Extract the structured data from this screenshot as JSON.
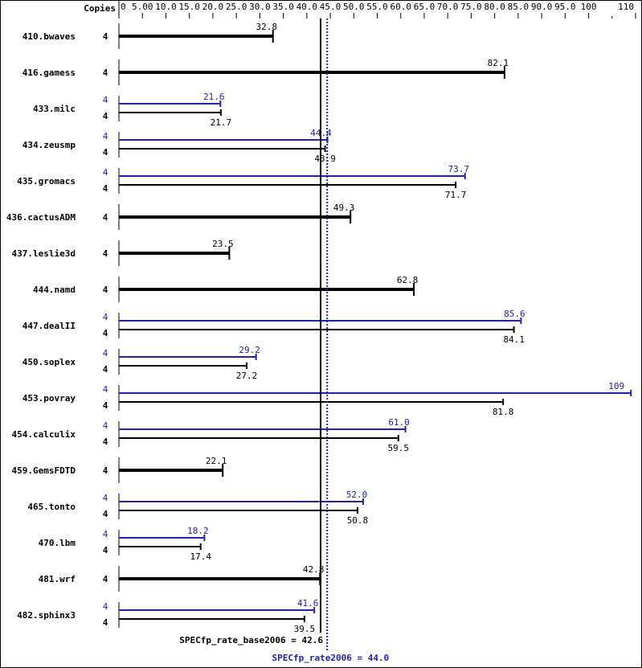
{
  "chart_data": {
    "type": "bar",
    "orientation": "horizontal",
    "copies_header": "Copies",
    "xlim": [
      0,
      110
    ],
    "x_ticks": [
      "0",
      "5.00",
      "10.0",
      "15.0",
      "20.0",
      "25.0",
      "30.0",
      "35.0",
      "40.0",
      "45.0",
      "50.0",
      "55.0",
      "60.0",
      "65.0",
      "70.0",
      "75.0",
      "80.0",
      "85.0",
      "90.0",
      "95.0",
      "100",
      "110"
    ],
    "x_tick_values": [
      0,
      5,
      10,
      15,
      20,
      25,
      30,
      35,
      40,
      45,
      50,
      55,
      60,
      65,
      70,
      75,
      80,
      85,
      90,
      95,
      100,
      110
    ],
    "colors": {
      "base": "#000000",
      "peak": "#2222aa"
    },
    "benchmarks": [
      {
        "name": "410.bwaves",
        "copies": "4",
        "base": 32.8,
        "base_label": "32.8"
      },
      {
        "name": "416.gamess",
        "copies": "4",
        "base": 82.1,
        "base_label": "82.1"
      },
      {
        "name": "433.milc",
        "copies": "4",
        "peak_copies": "4",
        "peak": 21.6,
        "peak_label": "21.6",
        "base": 21.7,
        "base_label": "21.7"
      },
      {
        "name": "434.zeusmp",
        "copies": "4",
        "peak_copies": "4",
        "peak": 44.4,
        "peak_label": "44.4",
        "base": 43.9,
        "base_label": "43.9"
      },
      {
        "name": "435.gromacs",
        "copies": "4",
        "peak_copies": "4",
        "peak": 73.7,
        "peak_label": "73.7",
        "base": 71.7,
        "base_label": "71.7"
      },
      {
        "name": "436.cactusADM",
        "copies": "4",
        "base": 49.3,
        "base_label": "49.3"
      },
      {
        "name": "437.leslie3d",
        "copies": "4",
        "base": 23.5,
        "base_label": "23.5"
      },
      {
        "name": "444.namd",
        "copies": "4",
        "base": 62.8,
        "base_label": "62.8"
      },
      {
        "name": "447.dealII",
        "copies": "4",
        "peak_copies": "4",
        "peak": 85.6,
        "peak_label": "85.6",
        "base": 84.1,
        "base_label": "84.1"
      },
      {
        "name": "450.soplex",
        "copies": "4",
        "peak_copies": "4",
        "peak": 29.2,
        "peak_label": "29.2",
        "base": 27.2,
        "base_label": "27.2"
      },
      {
        "name": "453.povray",
        "copies": "4",
        "peak_copies": "4",
        "peak": 109,
        "peak_label": "109",
        "base": 81.8,
        "base_label": "81.8"
      },
      {
        "name": "454.calculix",
        "copies": "4",
        "peak_copies": "4",
        "peak": 61.0,
        "peak_label": "61.0",
        "base": 59.5,
        "base_label": "59.5"
      },
      {
        "name": "459.GemsFDTD",
        "copies": "4",
        "base": 22.1,
        "base_label": "22.1"
      },
      {
        "name": "465.tonto",
        "copies": "4",
        "peak_copies": "4",
        "peak": 52.0,
        "peak_label": "52.0",
        "base": 50.8,
        "base_label": "50.8"
      },
      {
        "name": "470.lbm",
        "copies": "4",
        "peak_copies": "4",
        "peak": 18.2,
        "peak_label": "18.2",
        "base": 17.4,
        "base_label": "17.4"
      },
      {
        "name": "481.wrf",
        "copies": "4",
        "base": 42.8,
        "base_label": "42.8"
      },
      {
        "name": "482.sphinx3",
        "copies": "4",
        "peak_copies": "4",
        "peak": 41.6,
        "peak_label": "41.6",
        "base": 39.5,
        "base_label": "39.5"
      }
    ],
    "base_metric": {
      "label": "SPECfp_rate_base2006 = 42.6",
      "value": 42.6
    },
    "peak_metric": {
      "label": "SPECfp_rate2006 = 44.0",
      "value": 44.0
    }
  }
}
